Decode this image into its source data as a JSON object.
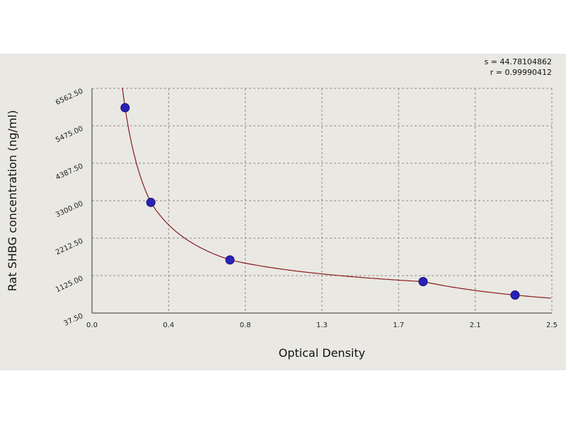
{
  "stats": {
    "s": "s = 44.78104862",
    "r": "r = 0.99990412"
  },
  "chart_data": {
    "type": "scatter",
    "xlabel": "Optical Density",
    "ylabel": "Rat SHBG concentration (ng/ml)",
    "xlim": [
      0.0,
      2.5
    ],
    "ylim": [
      37.5,
      6562.5
    ],
    "x_ticks": [
      "0.0",
      "0.4",
      "0.8",
      "1.3",
      "1.7",
      "2.1",
      "2.5"
    ],
    "y_ticks": [
      "37.50",
      "1125.00",
      "2212.50",
      "3300.00",
      "4387.50",
      "5475.00",
      "6562.50"
    ],
    "grid": true,
    "series": [
      {
        "points": [
          {
            "x": 0.18,
            "y": 6000
          },
          {
            "x": 0.32,
            "y": 3250
          },
          {
            "x": 0.75,
            "y": 1580
          },
          {
            "x": 1.8,
            "y": 950
          },
          {
            "x": 2.3,
            "y": 560
          }
        ],
        "color": "#2a21b8"
      }
    ],
    "fit_curve_color": "#8b1a1a"
  }
}
